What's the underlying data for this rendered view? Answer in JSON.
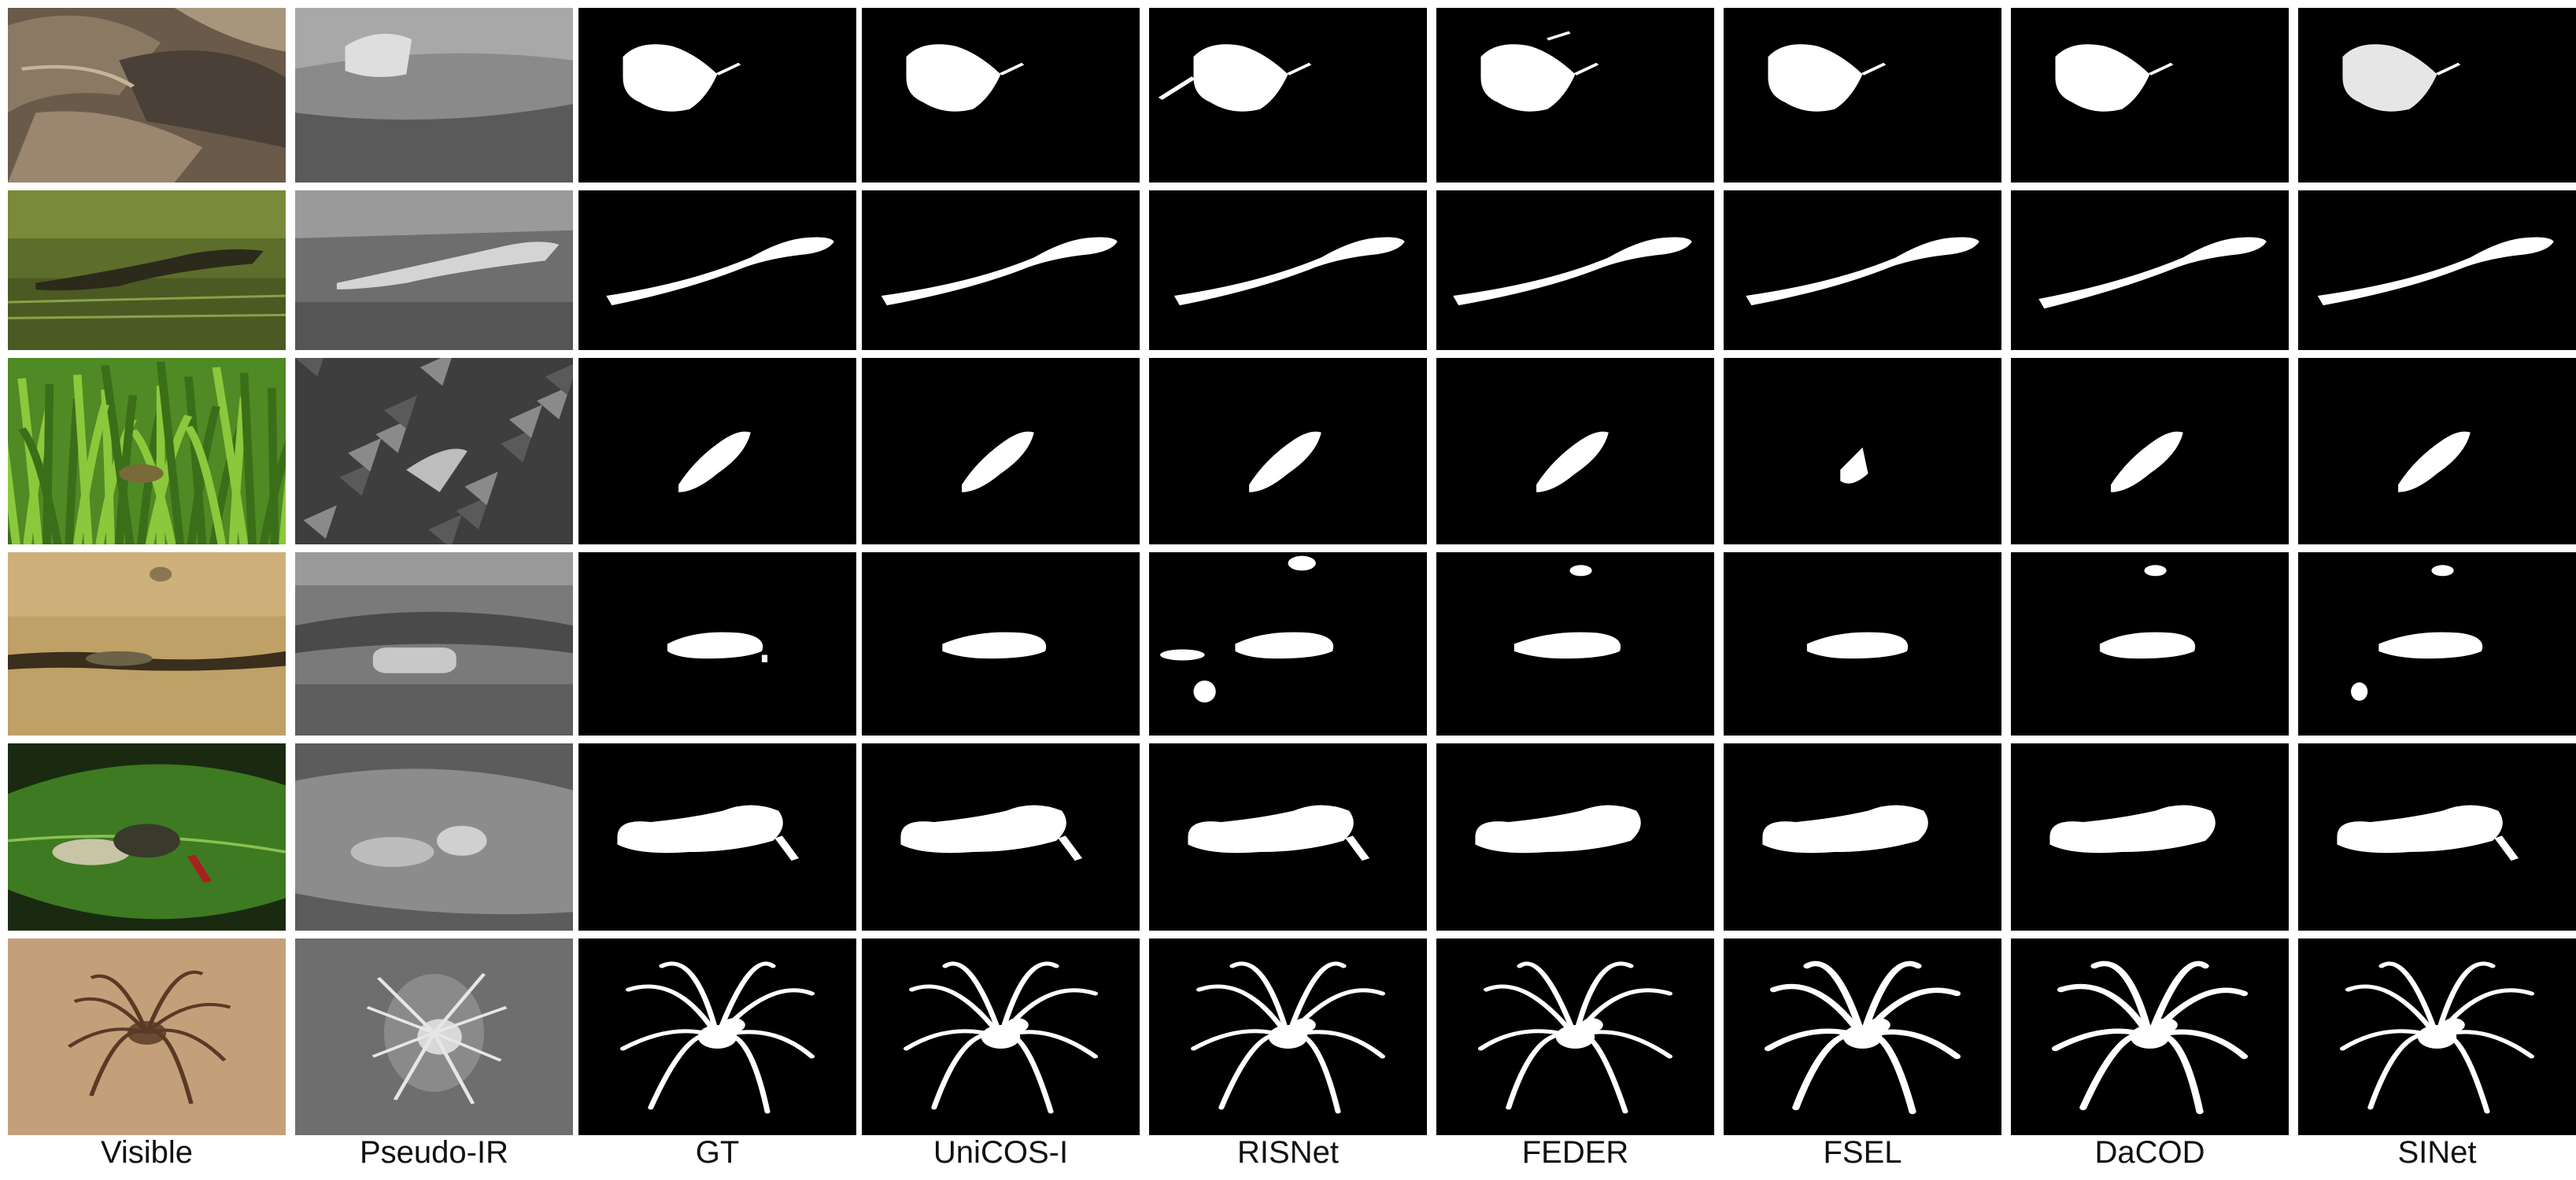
{
  "columns": [
    {
      "id": "visible",
      "label": "Visible"
    },
    {
      "id": "pseudo-ir",
      "label": "Pseudo-IR"
    },
    {
      "id": "gt",
      "label": "GT"
    },
    {
      "id": "unicos-i",
      "label": "UniCOS-I"
    },
    {
      "id": "risnet",
      "label": "RISNet"
    },
    {
      "id": "feder",
      "label": "FEDER"
    },
    {
      "id": "fsel",
      "label": "FSEL"
    },
    {
      "id": "dacod",
      "label": "DaCOD"
    },
    {
      "id": "sinet",
      "label": "SINet"
    }
  ],
  "rows": [
    {
      "id": "leaf",
      "subject": "leaf-insect"
    },
    {
      "id": "crocodile",
      "subject": "caiman"
    },
    {
      "id": "frog",
      "subject": "frog-in-grass"
    },
    {
      "id": "crab",
      "subject": "creature-in-rock-crack"
    },
    {
      "id": "caterpillar",
      "subject": "caterpillar-on-leaf"
    },
    {
      "id": "spider",
      "subject": "spider-on-sand"
    }
  ],
  "colors": {
    "mask_bg": "#000000",
    "mask_fg": "#ffffff",
    "separator": "#ffffff"
  }
}
